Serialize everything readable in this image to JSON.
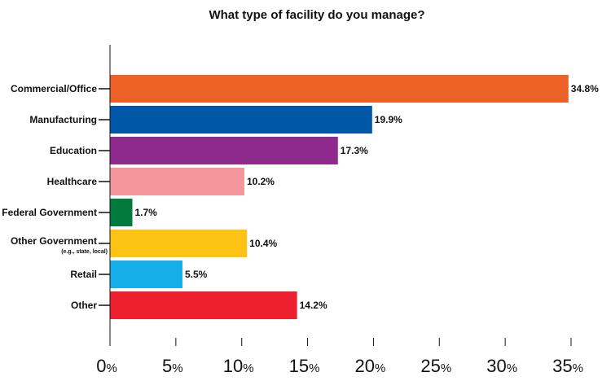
{
  "chart_data": {
    "type": "bar",
    "orientation": "horizontal",
    "title": "What type of facility do you manage?",
    "categories": [
      "Commercial/Office",
      "Manufacturing",
      "Education",
      "Healthcare",
      "Federal Government",
      "Other Government",
      "Retail",
      "Other"
    ],
    "category_sublabels": [
      "",
      "",
      "",
      "",
      "",
      "(e.g., state, local)",
      "",
      ""
    ],
    "values": [
      34.8,
      19.9,
      17.3,
      10.2,
      1.7,
      10.4,
      5.5,
      14.2
    ],
    "value_labels": [
      "34.8%",
      "19.9%",
      "17.3%",
      "10.2%",
      "1.7%",
      "10.4%",
      "5.5%",
      "14.2%"
    ],
    "colors": [
      "#eb6126",
      "#0057a8",
      "#8f2a8d",
      "#f5959c",
      "#007a3d",
      "#fcc314",
      "#16aee8",
      "#ee2030"
    ],
    "xlim": [
      0,
      35
    ],
    "xticks": [
      0,
      5,
      10,
      15,
      20,
      25,
      30,
      35
    ],
    "xtick_labels": [
      "0",
      "5",
      "10",
      "15",
      "20",
      "25",
      "30",
      "35"
    ],
    "xtick_unit": "%",
    "grid": false,
    "legend": "none"
  }
}
